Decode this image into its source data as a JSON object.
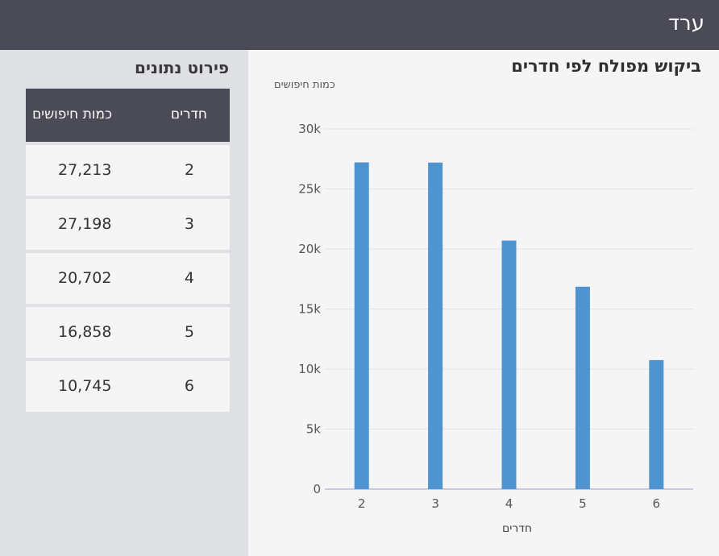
{
  "header": {
    "city": "ערד"
  },
  "sidebar": {
    "title": "פירוט נתונים",
    "table": {
      "headers": {
        "rooms": "חדרים",
        "quantity": "כמות חיפושים"
      },
      "rows": [
        {
          "rooms": "2",
          "quantity": "27,213"
        },
        {
          "rooms": "3",
          "quantity": "27,198"
        },
        {
          "rooms": "4",
          "quantity": "20,702"
        },
        {
          "rooms": "5",
          "quantity": "16,858"
        },
        {
          "rooms": "6",
          "quantity": "10,745"
        }
      ]
    }
  },
  "chart_data": {
    "type": "bar",
    "title": "ביקוש מפולח לפי חדרים",
    "xlabel": "חדרים",
    "ylabel": "כמות חיפושים",
    "categories": [
      "2",
      "3",
      "4",
      "5",
      "6"
    ],
    "values": [
      27213,
      27198,
      20702,
      16858,
      10745
    ],
    "ylim": [
      0,
      30000
    ],
    "yticks": [
      0,
      5000,
      10000,
      15000,
      20000,
      25000,
      30000
    ],
    "ytick_labels": [
      "0",
      "5k",
      "10k",
      "15k",
      "20k",
      "25k",
      "30k"
    ],
    "bar_color": "#4f94cf",
    "grid": true
  }
}
